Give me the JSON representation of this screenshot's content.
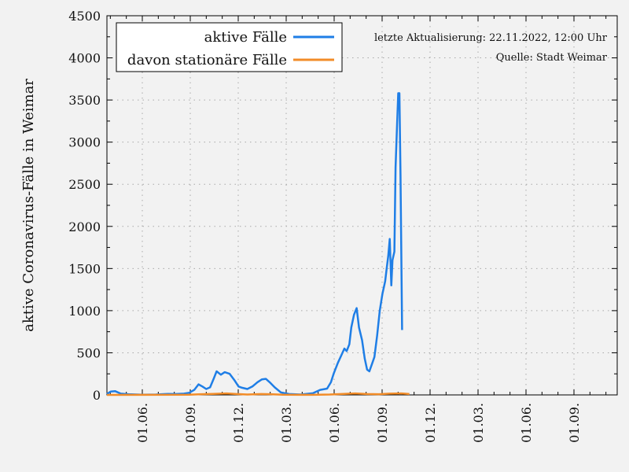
{
  "chart_data": {
    "type": "line",
    "ylabel": "aktive Coronavirus-Fälle in Weimar",
    "ylim": [
      0,
      4500
    ],
    "y_ticks": [
      0,
      500,
      1000,
      1500,
      2000,
      2500,
      3000,
      3500,
      4000,
      4500
    ],
    "x_ticks": [
      "01.06.",
      "01.09.",
      "01.12.",
      "01.03.",
      "01.06.",
      "01.09.",
      "01.12.",
      "01.03.",
      "01.06.",
      "01.09."
    ],
    "x_start": "2020-03-15",
    "x_end": "2023-11-01",
    "grid": true,
    "legend_position": "top-left",
    "annotations": [
      "letzte Aktualisierung: 22.11.2022, 12:00 Uhr",
      "Quelle: Stadt Weimar"
    ],
    "series": [
      {
        "name": "aktive Fälle",
        "color": "#1f7ee6",
        "points": [
          [
            "2020-03-15",
            10
          ],
          [
            "2020-03-25",
            40
          ],
          [
            "2020-04-05",
            45
          ],
          [
            "2020-04-20",
            15
          ],
          [
            "2020-05-10",
            8
          ],
          [
            "2020-06-15",
            3
          ],
          [
            "2020-07-20",
            5
          ],
          [
            "2020-08-20",
            12
          ],
          [
            "2020-09-10",
            10
          ],
          [
            "2020-10-01",
            15
          ],
          [
            "2020-10-15",
            25
          ],
          [
            "2020-10-28",
            60
          ],
          [
            "2020-11-08",
            125
          ],
          [
            "2020-11-18",
            100
          ],
          [
            "2020-11-28",
            70
          ],
          [
            "2020-12-08",
            90
          ],
          [
            "2020-12-18",
            200
          ],
          [
            "2020-12-25",
            280
          ],
          [
            "2021-01-05",
            240
          ],
          [
            "2021-01-15",
            270
          ],
          [
            "2021-01-28",
            250
          ],
          [
            "2021-02-10",
            170
          ],
          [
            "2021-02-20",
            100
          ],
          [
            "2021-03-01",
            85
          ],
          [
            "2021-03-15",
            70
          ],
          [
            "2021-03-28",
            100
          ],
          [
            "2021-04-10",
            150
          ],
          [
            "2021-04-22",
            185
          ],
          [
            "2021-05-02",
            190
          ],
          [
            "2021-05-12",
            150
          ],
          [
            "2021-05-25",
            90
          ],
          [
            "2021-06-10",
            30
          ],
          [
            "2021-07-01",
            10
          ],
          [
            "2021-08-01",
            5
          ],
          [
            "2021-09-01",
            20
          ],
          [
            "2021-09-20",
            60
          ],
          [
            "2021-10-08",
            75
          ],
          [
            "2021-10-18",
            150
          ],
          [
            "2021-10-25",
            250
          ],
          [
            "2021-11-05",
            380
          ],
          [
            "2021-11-15",
            480
          ],
          [
            "2021-11-22",
            550
          ],
          [
            "2021-11-28",
            520
          ],
          [
            "2021-12-05",
            600
          ],
          [
            "2021-12-10",
            800
          ],
          [
            "2021-12-17",
            950
          ],
          [
            "2021-12-24",
            1030
          ],
          [
            "2021-12-30",
            800
          ],
          [
            "2022-01-07",
            650
          ],
          [
            "2022-01-14",
            430
          ],
          [
            "2022-01-20",
            300
          ],
          [
            "2022-01-26",
            280
          ],
          [
            "2022-02-02",
            370
          ],
          [
            "2022-02-08",
            450
          ],
          [
            "2022-02-15",
            700
          ],
          [
            "2022-02-22",
            1000
          ],
          [
            "2022-03-01",
            1200
          ],
          [
            "2022-03-08",
            1350
          ],
          [
            "2022-03-12",
            1500
          ],
          [
            "2022-03-16",
            1650
          ],
          [
            "2022-03-20",
            1850
          ],
          [
            "2022-03-24",
            1300
          ],
          [
            "2022-03-27",
            1600
          ],
          [
            "2022-04-01",
            1700
          ],
          [
            "2022-04-04",
            2700
          ],
          [
            "2022-04-08",
            3200
          ],
          [
            "2022-04-11",
            3580
          ],
          [
            "2022-04-14",
            3580
          ],
          [
            "2022-04-17",
            2600
          ],
          [
            "2022-04-21",
            770
          ]
        ]
      },
      {
        "name": "davon stationäre Fälle",
        "color": "#f28c28",
        "points": [
          [
            "2020-03-15",
            0
          ],
          [
            "2020-10-15",
            2
          ],
          [
            "2020-11-15",
            8
          ],
          [
            "2020-12-15",
            12
          ],
          [
            "2021-01-20",
            18
          ],
          [
            "2021-02-15",
            10
          ],
          [
            "2021-03-15",
            5
          ],
          [
            "2021-04-20",
            10
          ],
          [
            "2021-05-15",
            8
          ],
          [
            "2021-06-15",
            2
          ],
          [
            "2021-09-01",
            1
          ],
          [
            "2021-10-15",
            5
          ],
          [
            "2021-11-20",
            12
          ],
          [
            "2021-12-20",
            18
          ],
          [
            "2022-01-20",
            10
          ],
          [
            "2022-02-20",
            8
          ],
          [
            "2022-03-20",
            15
          ],
          [
            "2022-04-20",
            18
          ],
          [
            "2022-05-10",
            10
          ]
        ]
      }
    ]
  }
}
